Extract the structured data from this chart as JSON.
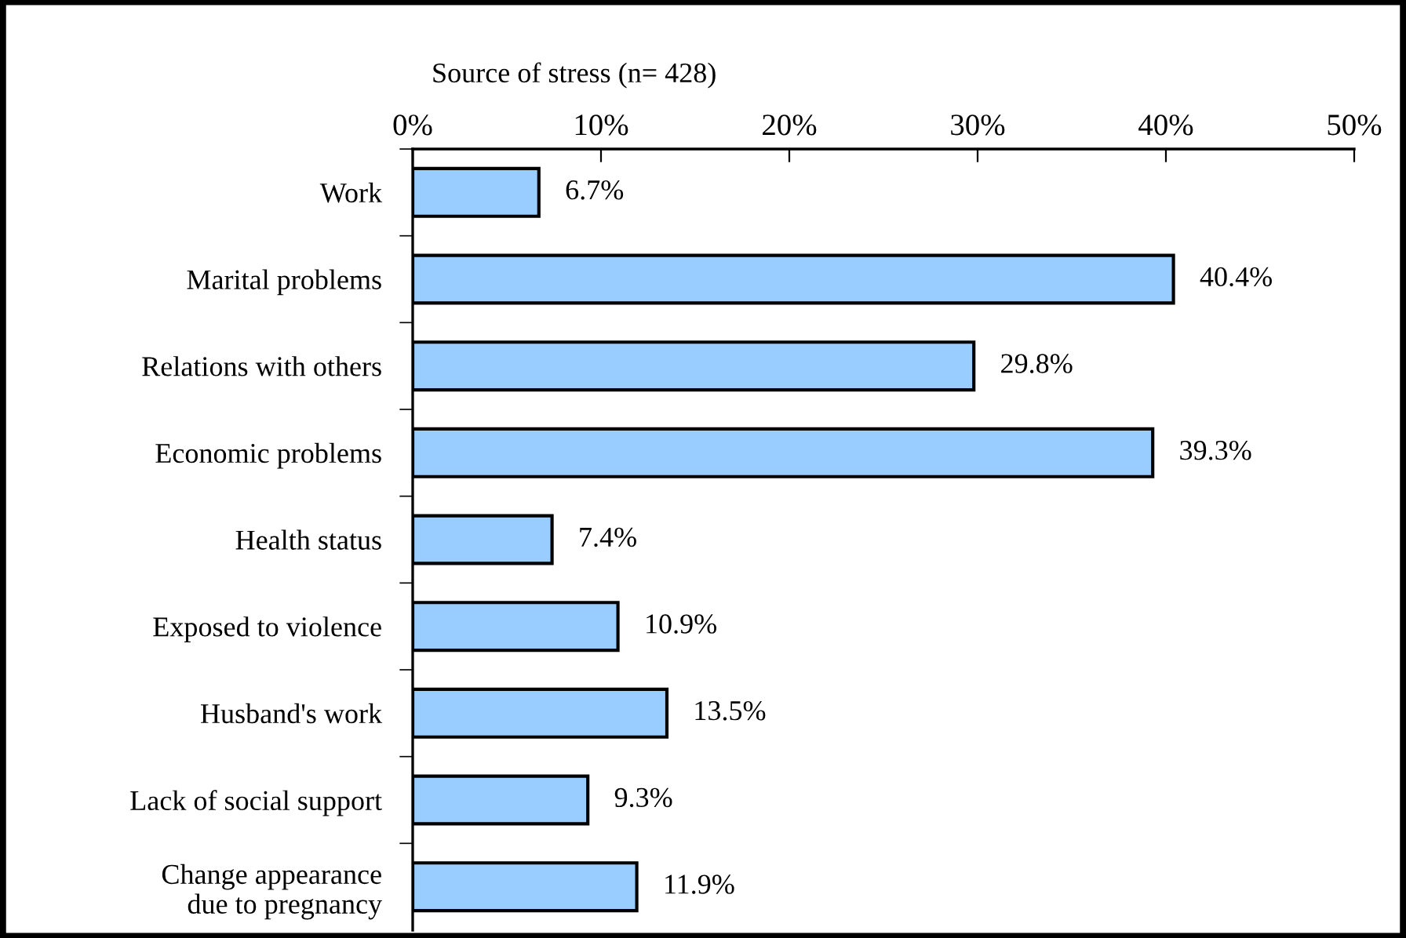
{
  "chart_data": {
    "type": "bar",
    "orientation": "horizontal",
    "title": "Source of stress (n= 428)",
    "categories": [
      "Work",
      "Marital problems",
      "Relations with others",
      "Economic problems",
      "Health status",
      "Exposed to violence",
      "Husband's work",
      "Lack of social support",
      "Change appearance\ndue to pregnancy"
    ],
    "values": [
      6.7,
      40.4,
      29.8,
      39.3,
      7.4,
      10.9,
      13.5,
      9.3,
      11.9
    ],
    "value_labels": [
      "6.7%",
      "40.4%",
      "29.8%",
      "39.3%",
      "7.4%",
      "10.9%",
      "13.5%",
      "9.3%",
      "11.9%"
    ],
    "color": "#99ccff",
    "xlim": [
      0,
      50
    ],
    "xticks": [
      {
        "value": 0,
        "label": "0%"
      },
      {
        "value": 10,
        "label": "10%"
      },
      {
        "value": 20,
        "label": "20%"
      },
      {
        "value": 30,
        "label": "30%"
      },
      {
        "value": 40,
        "label": "40%"
      },
      {
        "value": 50,
        "label": "50%"
      }
    ],
    "grid": false
  }
}
